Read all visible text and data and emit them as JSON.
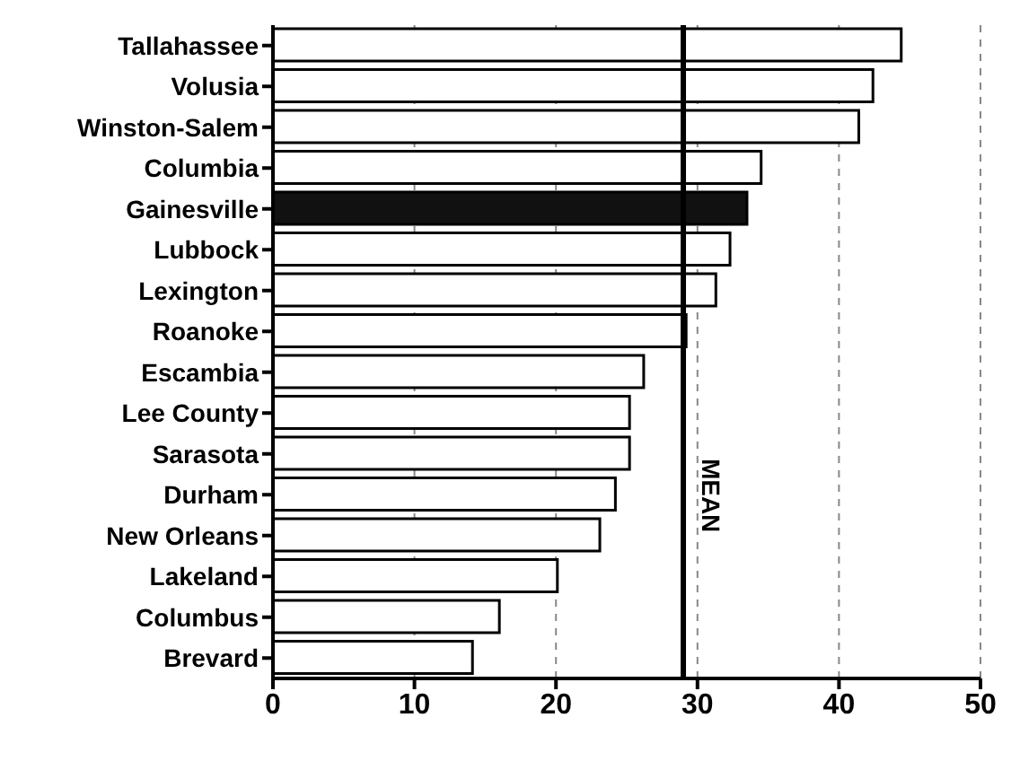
{
  "chart_data": {
    "type": "bar",
    "orientation": "horizontal",
    "categories": [
      "Tallahassee",
      "Volusia",
      "Winston-Salem",
      "Columbia",
      "Gainesville",
      "Lubbock",
      "Lexington",
      "Roanoke",
      "Escambia",
      "Lee County",
      "Sarasota",
      "Durham",
      "New Orleans",
      "Lakeland",
      "Columbus",
      "Brevard"
    ],
    "values": [
      44.4,
      42.4,
      41.4,
      34.5,
      33.5,
      32.3,
      31.3,
      29.2,
      26.2,
      25.2,
      25.2,
      24.2,
      23.1,
      20.1,
      16,
      14.1
    ],
    "colors": [
      "#ffffff",
      "#ffffff",
      "#ffffff",
      "#ffffff",
      "#111111",
      "#ffffff",
      "#ffffff",
      "#ffffff",
      "#ffffff",
      "#ffffff",
      "#ffffff",
      "#ffffff",
      "#ffffff",
      "#ffffff",
      "#ffffff",
      "#ffffff"
    ],
    "xlim": [
      0,
      50
    ],
    "xticks": [
      0,
      10,
      20,
      30,
      40,
      50
    ],
    "grid": "x",
    "ref_lines": [
      {
        "axis": "x",
        "value": 29,
        "label": "MEAN",
        "color": "#000000"
      }
    ]
  }
}
